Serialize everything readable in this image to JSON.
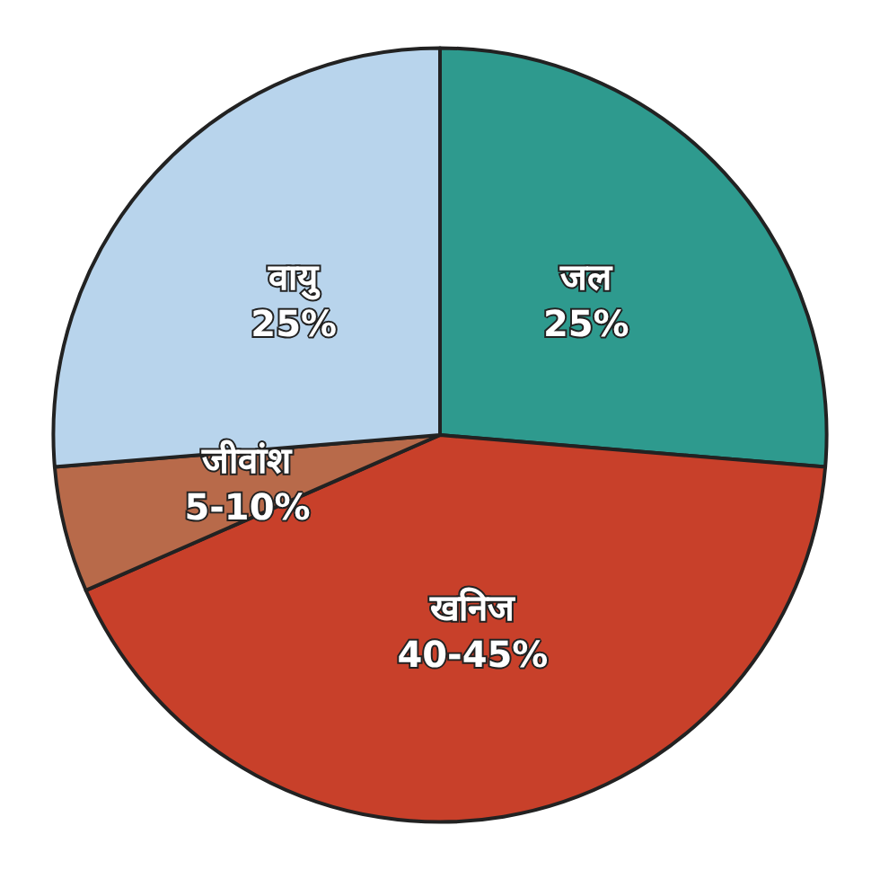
{
  "chart_data": {
    "type": "pie",
    "categories": [
      "जल",
      "खनिज",
      "जीवांश",
      "वायु"
    ],
    "values": [
      25,
      40,
      5,
      25
    ],
    "value_labels": [
      "25%",
      "40-45%",
      "5-10%",
      "25%"
    ],
    "colors": [
      "#2e9a8e",
      "#c8402a",
      "#b86a4a",
      "#b8d4ec"
    ],
    "legend": false
  }
}
